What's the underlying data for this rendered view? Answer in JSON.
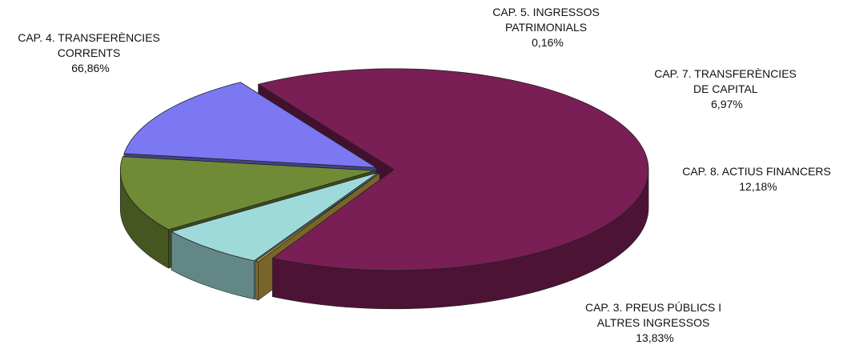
{
  "chart_data": {
    "type": "pie",
    "style": "3d-exploded",
    "slices": [
      {
        "label_lines": [
          "CAP. 3. PREUS PÚBLICS I",
          "ALTRES INGRESSOS"
        ],
        "value": 13.83,
        "value_text": "13,83%",
        "color": "#7b78f2"
      },
      {
        "label_lines": [
          "CAP. 4. TRANSFERÈNCIES",
          "CORRENTS"
        ],
        "value": 66.86,
        "value_text": "66,86%",
        "color": "#7a1e56"
      },
      {
        "label_lines": [
          "CAP. 5. INGRESSOS",
          "PATRIMONIALS"
        ],
        "value": 0.16,
        "value_text": "0,16%",
        "color": "#d9b84a"
      },
      {
        "label_lines": [
          "CAP. 7. TRANSFERÈNCIES",
          "DE CAPITAL"
        ],
        "value": 6.97,
        "value_text": "6,97%",
        "color": "#9fdada"
      },
      {
        "label_lines": [
          "CAP. 8. ACTIUS FINANCERS"
        ],
        "value": 12.18,
        "value_text": "12,18%",
        "color": "#6f8b36"
      }
    ],
    "legend": "none",
    "grid": false
  }
}
